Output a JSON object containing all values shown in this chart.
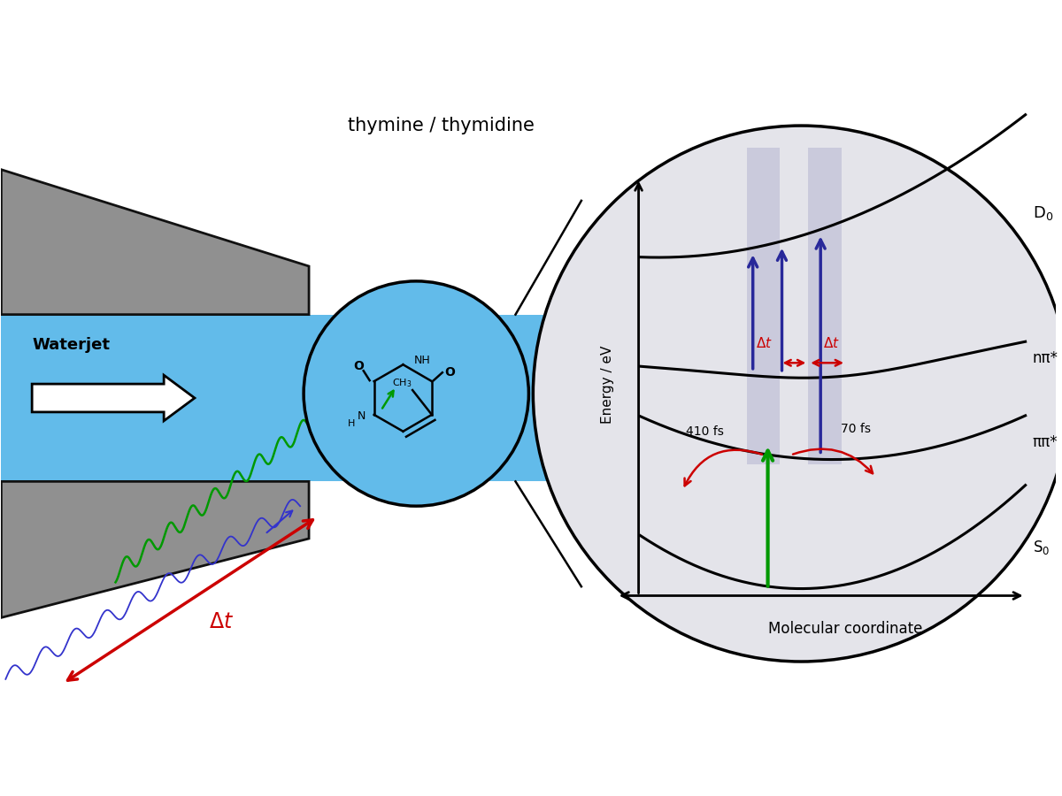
{
  "bg_color": "#ffffff",
  "waterjet_color": "#62bbea",
  "nozzle_color": "#909090",
  "nozzle_edge": "#111111",
  "circle_bg": "#e4e4ea",
  "blue_arrow_color": "#28289a",
  "green_color": "#009900",
  "red_color": "#cc0000",
  "title": "thymine / thymidine",
  "waterjet_label": "Waterjet",
  "xlabel": "Molecular coordinate",
  "ylabel": "Energy / eV",
  "label_D0": "D$_0$",
  "label_npi": "nπ*",
  "label_ppi": "ππ*",
  "label_S0": "S$_0$",
  "label_410": "410 fs",
  "label_70": "70 fs"
}
